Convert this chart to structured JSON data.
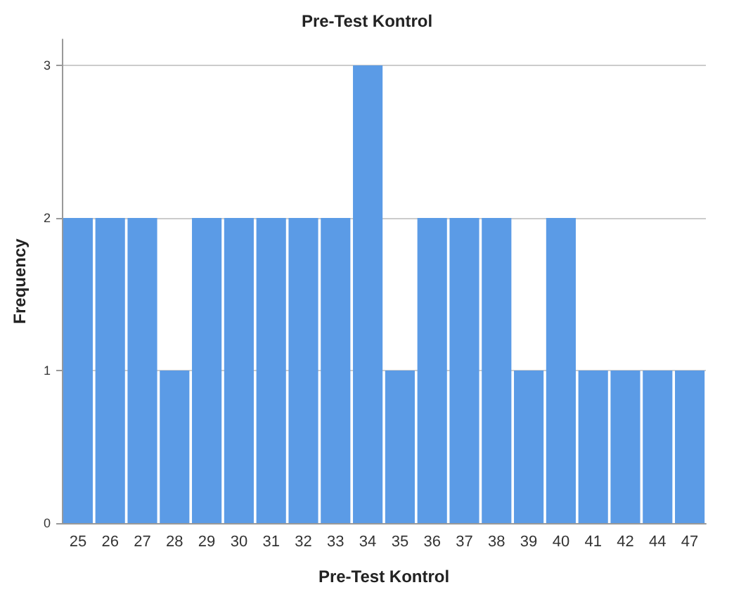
{
  "chart_data": {
    "type": "bar",
    "title": "Pre-Test Kontrol",
    "xlabel": "Pre-Test Kontrol",
    "ylabel": "Frequency",
    "categories": [
      "25",
      "26",
      "27",
      "28",
      "29",
      "30",
      "31",
      "32",
      "33",
      "34",
      "35",
      "36",
      "37",
      "38",
      "39",
      "40",
      "41",
      "42",
      "44",
      "47"
    ],
    "values": [
      2,
      2,
      2,
      1,
      2,
      2,
      2,
      2,
      2,
      3,
      1,
      2,
      2,
      2,
      1,
      2,
      1,
      1,
      1,
      1
    ],
    "color": "#5b9be6",
    "ylim": [
      0,
      3.17
    ],
    "yticks": [
      0,
      1,
      2,
      3
    ],
    "grid": "y"
  }
}
